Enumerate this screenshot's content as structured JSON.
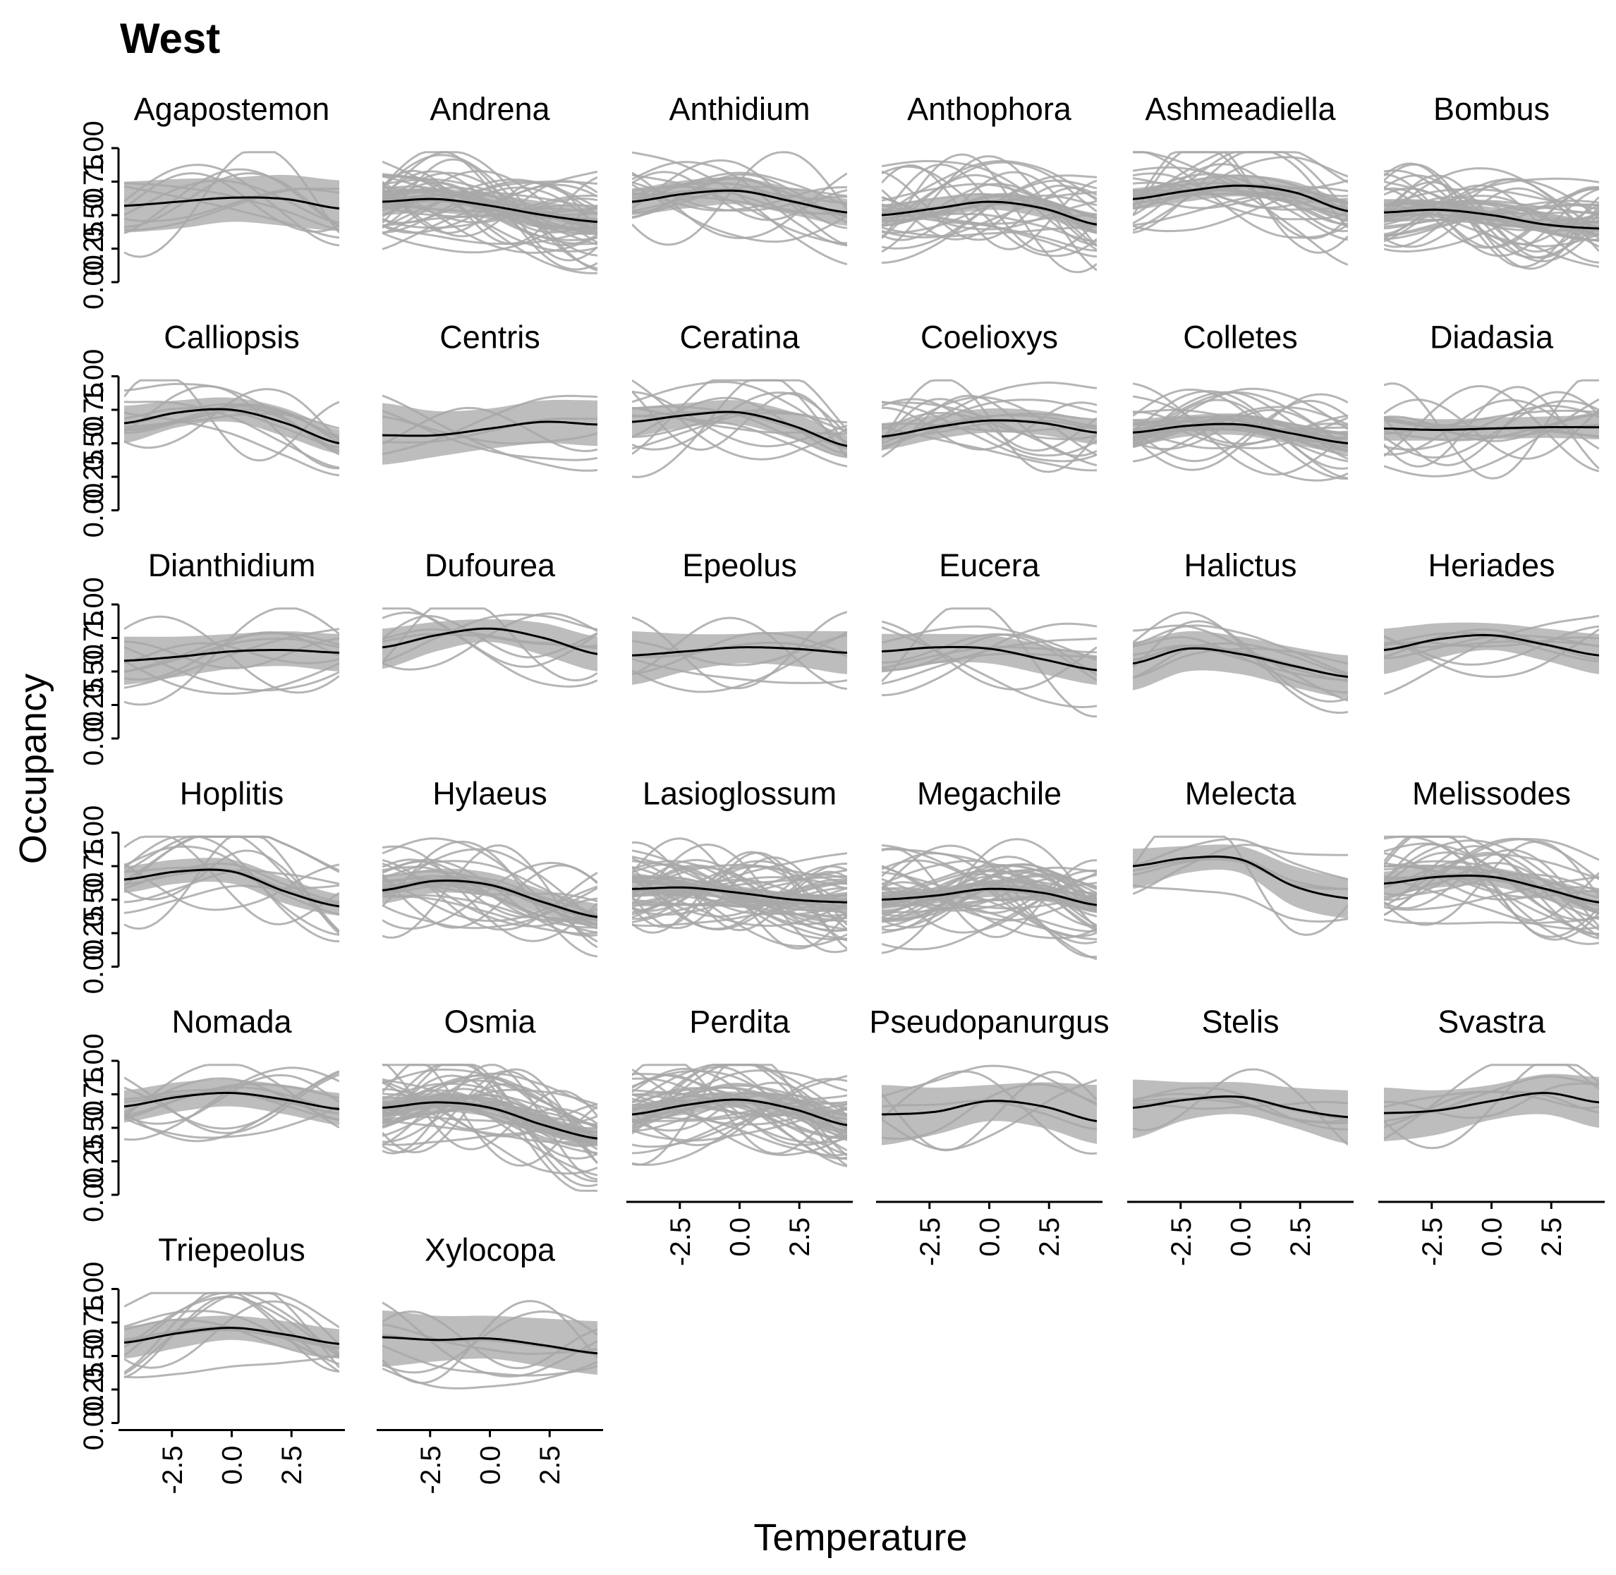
{
  "chart_data": {
    "type": "line",
    "title": "West",
    "xlabel": "Temperature",
    "ylabel": "Occupancy",
    "x_ticks": [
      "-2.5",
      "0.0",
      "2.5"
    ],
    "xlim": [
      -4.5,
      4.5
    ],
    "y_ticks": [
      "0.00",
      "0.25",
      "0.50",
      "0.75",
      "1.00"
    ],
    "ylim": [
      0,
      1
    ],
    "grid": false,
    "legend": "none",
    "colors": {
      "mean_line": "#000000",
      "ribbon": "#bdbdbd",
      "site_lines": "#a8a8a8"
    },
    "facets": [
      {
        "name": "Agapostemon",
        "mean": [
          0.57,
          0.6,
          0.63,
          0.62,
          0.55
        ],
        "band_lo": [
          0.37,
          0.4,
          0.45,
          0.42,
          0.38
        ],
        "band_hi": [
          0.75,
          0.77,
          0.78,
          0.8,
          0.76
        ],
        "site_count": 10
      },
      {
        "name": "Andrena",
        "mean": [
          0.6,
          0.62,
          0.57,
          0.5,
          0.45
        ],
        "band_lo": [
          0.5,
          0.52,
          0.47,
          0.4,
          0.35
        ],
        "band_hi": [
          0.68,
          0.7,
          0.66,
          0.6,
          0.55
        ],
        "site_count": 45
      },
      {
        "name": "Anthidium",
        "mean": [
          0.6,
          0.66,
          0.68,
          0.6,
          0.52
        ],
        "band_lo": [
          0.5,
          0.55,
          0.58,
          0.5,
          0.42
        ],
        "band_hi": [
          0.7,
          0.76,
          0.78,
          0.7,
          0.62
        ],
        "site_count": 20
      },
      {
        "name": "Anthophora",
        "mean": [
          0.5,
          0.55,
          0.6,
          0.55,
          0.43
        ],
        "band_lo": [
          0.42,
          0.48,
          0.54,
          0.48,
          0.36
        ],
        "band_hi": [
          0.58,
          0.62,
          0.66,
          0.62,
          0.5
        ],
        "site_count": 30
      },
      {
        "name": "Ashmeadiella",
        "mean": [
          0.62,
          0.68,
          0.72,
          0.67,
          0.53
        ],
        "band_lo": [
          0.54,
          0.6,
          0.64,
          0.58,
          0.45
        ],
        "band_hi": [
          0.7,
          0.76,
          0.8,
          0.75,
          0.61
        ],
        "site_count": 25
      },
      {
        "name": "Bombus",
        "mean": [
          0.52,
          0.54,
          0.5,
          0.43,
          0.4
        ],
        "band_lo": [
          0.45,
          0.48,
          0.44,
          0.37,
          0.34
        ],
        "band_hi": [
          0.58,
          0.6,
          0.56,
          0.49,
          0.46
        ],
        "site_count": 40
      },
      {
        "name": "Calliopsis",
        "mean": [
          0.65,
          0.73,
          0.75,
          0.65,
          0.5
        ],
        "band_lo": [
          0.5,
          0.62,
          0.66,
          0.55,
          0.42
        ],
        "band_hi": [
          0.78,
          0.82,
          0.84,
          0.76,
          0.6
        ],
        "site_count": 12
      },
      {
        "name": "Centris",
        "mean": [
          0.56,
          0.56,
          0.61,
          0.66,
          0.64
        ],
        "band_lo": [
          0.34,
          0.4,
          0.46,
          0.5,
          0.48
        ],
        "band_hi": [
          0.8,
          0.74,
          0.76,
          0.82,
          0.82
        ],
        "site_count": 6
      },
      {
        "name": "Ceratina",
        "mean": [
          0.66,
          0.71,
          0.73,
          0.63,
          0.48
        ],
        "band_lo": [
          0.55,
          0.62,
          0.64,
          0.53,
          0.4
        ],
        "band_hi": [
          0.77,
          0.8,
          0.82,
          0.73,
          0.56
        ],
        "site_count": 14
      },
      {
        "name": "Coelioxys",
        "mean": [
          0.55,
          0.62,
          0.67,
          0.65,
          0.58
        ],
        "band_lo": [
          0.45,
          0.53,
          0.58,
          0.56,
          0.49
        ],
        "band_hi": [
          0.65,
          0.71,
          0.76,
          0.74,
          0.67
        ],
        "site_count": 16
      },
      {
        "name": "Colletes",
        "mean": [
          0.58,
          0.63,
          0.64,
          0.57,
          0.5
        ],
        "band_lo": [
          0.48,
          0.55,
          0.56,
          0.49,
          0.42
        ],
        "band_hi": [
          0.68,
          0.71,
          0.72,
          0.65,
          0.58
        ],
        "site_count": 30
      },
      {
        "name": "Diadasia",
        "mean": [
          0.61,
          0.6,
          0.61,
          0.62,
          0.62
        ],
        "band_lo": [
          0.52,
          0.52,
          0.53,
          0.54,
          0.53
        ],
        "band_hi": [
          0.7,
          0.68,
          0.69,
          0.7,
          0.71
        ],
        "site_count": 15
      },
      {
        "name": "Dianthidium",
        "mean": [
          0.58,
          0.61,
          0.65,
          0.66,
          0.64
        ],
        "band_lo": [
          0.4,
          0.46,
          0.52,
          0.54,
          0.5
        ],
        "band_hi": [
          0.76,
          0.76,
          0.78,
          0.8,
          0.78
        ],
        "site_count": 10
      },
      {
        "name": "Dufourea",
        "mean": [
          0.68,
          0.77,
          0.82,
          0.75,
          0.63
        ],
        "band_lo": [
          0.52,
          0.65,
          0.72,
          0.62,
          0.5
        ],
        "band_hi": [
          0.82,
          0.87,
          0.89,
          0.86,
          0.76
        ],
        "site_count": 8
      },
      {
        "name": "Epeolus",
        "mean": [
          0.62,
          0.65,
          0.68,
          0.67,
          0.64
        ],
        "band_lo": [
          0.4,
          0.5,
          0.56,
          0.54,
          0.48
        ],
        "band_hi": [
          0.8,
          0.78,
          0.78,
          0.8,
          0.8
        ],
        "site_count": 7
      },
      {
        "name": "Eucera",
        "mean": [
          0.65,
          0.68,
          0.67,
          0.59,
          0.51
        ],
        "band_lo": [
          0.5,
          0.56,
          0.56,
          0.48,
          0.4
        ],
        "band_hi": [
          0.78,
          0.78,
          0.77,
          0.7,
          0.62
        ],
        "site_count": 10
      },
      {
        "name": "Halictus",
        "mean": [
          0.56,
          0.67,
          0.63,
          0.54,
          0.46
        ],
        "band_lo": [
          0.36,
          0.5,
          0.48,
          0.38,
          0.3
        ],
        "band_hi": [
          0.72,
          0.8,
          0.76,
          0.68,
          0.62
        ],
        "site_count": 10
      },
      {
        "name": "Heriades",
        "mean": [
          0.66,
          0.74,
          0.77,
          0.7,
          0.62
        ],
        "band_lo": [
          0.48,
          0.6,
          0.66,
          0.58,
          0.48
        ],
        "band_hi": [
          0.82,
          0.86,
          0.86,
          0.82,
          0.78
        ],
        "site_count": 8
      },
      {
        "name": "Hoplitis",
        "mean": [
          0.65,
          0.71,
          0.71,
          0.56,
          0.45
        ],
        "band_lo": [
          0.55,
          0.62,
          0.62,
          0.47,
          0.38
        ],
        "band_hi": [
          0.75,
          0.8,
          0.8,
          0.66,
          0.54
        ],
        "site_count": 14
      },
      {
        "name": "Hylaeus",
        "mean": [
          0.57,
          0.64,
          0.61,
          0.48,
          0.37
        ],
        "band_lo": [
          0.47,
          0.55,
          0.52,
          0.39,
          0.29
        ],
        "band_hi": [
          0.67,
          0.73,
          0.7,
          0.57,
          0.47
        ],
        "site_count": 30
      },
      {
        "name": "Lasioglossum",
        "mean": [
          0.58,
          0.59,
          0.55,
          0.5,
          0.48
        ],
        "band_lo": [
          0.52,
          0.53,
          0.5,
          0.45,
          0.43
        ],
        "band_hi": [
          0.64,
          0.65,
          0.6,
          0.55,
          0.53
        ],
        "site_count": 50
      },
      {
        "name": "Megachile",
        "mean": [
          0.5,
          0.53,
          0.58,
          0.55,
          0.46
        ],
        "band_lo": [
          0.44,
          0.47,
          0.52,
          0.49,
          0.4
        ],
        "band_hi": [
          0.56,
          0.59,
          0.64,
          0.61,
          0.52
        ],
        "site_count": 45
      },
      {
        "name": "Melecta",
        "mean": [
          0.75,
          0.81,
          0.8,
          0.6,
          0.51
        ],
        "band_lo": [
          0.58,
          0.7,
          0.7,
          0.45,
          0.36
        ],
        "band_hi": [
          0.88,
          0.9,
          0.9,
          0.75,
          0.66
        ],
        "site_count": 6
      },
      {
        "name": "Melissodes",
        "mean": [
          0.62,
          0.67,
          0.67,
          0.58,
          0.48
        ],
        "band_lo": [
          0.53,
          0.59,
          0.6,
          0.5,
          0.4
        ],
        "band_hi": [
          0.71,
          0.75,
          0.74,
          0.66,
          0.56
        ],
        "site_count": 30
      },
      {
        "name": "Nomada",
        "mean": [
          0.66,
          0.73,
          0.76,
          0.71,
          0.64
        ],
        "band_lo": [
          0.54,
          0.62,
          0.66,
          0.6,
          0.52
        ],
        "band_hi": [
          0.78,
          0.84,
          0.86,
          0.82,
          0.76
        ],
        "site_count": 12
      },
      {
        "name": "Osmia",
        "mean": [
          0.65,
          0.69,
          0.65,
          0.52,
          0.42
        ],
        "band_lo": [
          0.58,
          0.62,
          0.58,
          0.45,
          0.36
        ],
        "band_hi": [
          0.72,
          0.76,
          0.72,
          0.59,
          0.49
        ],
        "site_count": 45
      },
      {
        "name": "Perdita",
        "mean": [
          0.6,
          0.67,
          0.71,
          0.64,
          0.52
        ],
        "band_lo": [
          0.53,
          0.6,
          0.65,
          0.57,
          0.45
        ],
        "band_hi": [
          0.67,
          0.74,
          0.77,
          0.71,
          0.59
        ],
        "site_count": 40
      },
      {
        "name": "Pseudopanurgus",
        "mean": [
          0.6,
          0.62,
          0.7,
          0.66,
          0.55
        ],
        "band_lo": [
          0.37,
          0.45,
          0.55,
          0.5,
          0.38
        ],
        "band_hi": [
          0.82,
          0.8,
          0.82,
          0.84,
          0.82
        ],
        "site_count": 6
      },
      {
        "name": "Stelis",
        "mean": [
          0.65,
          0.71,
          0.73,
          0.64,
          0.58
        ],
        "band_lo": [
          0.42,
          0.56,
          0.6,
          0.5,
          0.38
        ],
        "band_hi": [
          0.86,
          0.84,
          0.84,
          0.8,
          0.78
        ],
        "site_count": 6
      },
      {
        "name": "Svastra",
        "mean": [
          0.61,
          0.63,
          0.7,
          0.76,
          0.69
        ],
        "band_lo": [
          0.4,
          0.45,
          0.56,
          0.6,
          0.5
        ],
        "band_hi": [
          0.8,
          0.78,
          0.82,
          0.9,
          0.88
        ],
        "site_count": 6
      },
      {
        "name": "Triepeolus",
        "mean": [
          0.6,
          0.67,
          0.71,
          0.66,
          0.59
        ],
        "band_lo": [
          0.48,
          0.56,
          0.62,
          0.56,
          0.48
        ],
        "band_hi": [
          0.72,
          0.78,
          0.8,
          0.76,
          0.7
        ],
        "site_count": 12
      },
      {
        "name": "Xylocopa",
        "mean": [
          0.64,
          0.62,
          0.63,
          0.58,
          0.52
        ],
        "band_lo": [
          0.42,
          0.46,
          0.48,
          0.42,
          0.36
        ],
        "band_hi": [
          0.84,
          0.8,
          0.8,
          0.78,
          0.76
        ],
        "site_count": 8
      }
    ]
  }
}
